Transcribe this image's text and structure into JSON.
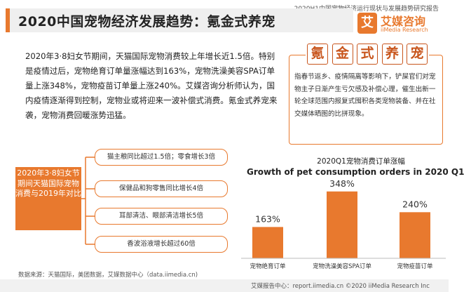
{
  "header": {
    "report_label": "2020H1中国宠物经济运行现状与发展趋势研究报告",
    "title": "2020中国宠物经济发展趋势：氪金式养宠"
  },
  "brand": {
    "mark": "艾",
    "name": "艾媒咨询",
    "name_en": "iiMedia Research",
    "accent_color": "#e8792e"
  },
  "intro": {
    "text": "2020年3·8妇女节期间，天猫国际宠物消费较上年增长近1.5倍。特别是疫情过后，宠物绝育订单量涨幅达到163%，宠物洗澡美容SPA订单量上涨348%，宠物疫苗订单量上涨240%。艾媒咨询分析师认为，国内疫情逐渐得到控制，宠物业或将迎来一波补偿式消费。氪金式养宠来袭，宠物消费回暖涨势迅猛。"
  },
  "concept": {
    "chars": [
      "氪",
      "金",
      "式",
      "养",
      "宠"
    ],
    "description": "指春节返乡、疫情隔离等影响下，铲屎官们对宠物主子日渐产生亏欠感及补偿心理，催生出新一轮全球范围内报复式囤积各类宠物装备、并在社交媒体晒图的比拼现象。"
  },
  "event": {
    "text": "2020年3·8妇女节期间天猫国际宠物消费与2019年对比"
  },
  "facts": [
    "猫主粮同比超过1.5倍；零食增长3倍",
    "保健品和狗零售同比增长4倍",
    "耳部清洁、眼部清洁增长5倍",
    "香波浴液增长超过60倍"
  ],
  "chart": {
    "title_cn": "2020Q1宠物消费订单涨幅",
    "title_en": "Growth of pet consumption orders in 2020 Q1"
  },
  "chart_data": {
    "type": "bar",
    "title": "2020Q1宠物消费订单涨幅",
    "subtitle": "Growth of pet consumption orders in 2020 Q1",
    "categories": [
      "宠物绝育订单",
      "宠物洗澡美容SPA订单",
      "宠物疫苗订单"
    ],
    "values": [
      163,
      348,
      240
    ],
    "value_labels": [
      "163%",
      "348%",
      "240%"
    ],
    "unit": "%",
    "bar_color": "#e8792e",
    "ylim": [
      0,
      380
    ],
    "grid": false,
    "legend": "none"
  },
  "source": {
    "text": "数据来源：天猫国际，美团数据，艾媒数据中心（data.iimedia.cn)"
  },
  "footer": {
    "text": "艾媒报告中心：report.iimedia.cn ©2020  iiMedia Research Inc"
  }
}
